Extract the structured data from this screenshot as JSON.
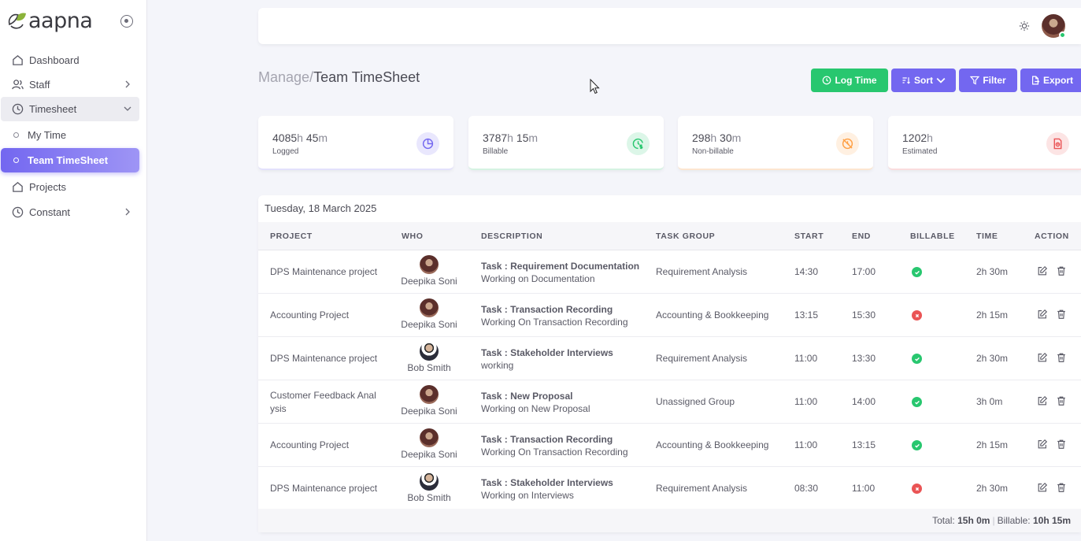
{
  "brand": {
    "name": "aapna"
  },
  "sidebar": {
    "items": [
      {
        "label": "Dashboard",
        "icon": "home-icon"
      },
      {
        "label": "Staff",
        "icon": "users-icon"
      },
      {
        "label": "Timesheet",
        "icon": "clock-icon"
      },
      {
        "label": "Projects",
        "icon": "home-icon"
      },
      {
        "label": "Constant",
        "icon": "clock-icon"
      }
    ],
    "sub_items": [
      {
        "label": "My Time"
      },
      {
        "label": "Team TimeSheet"
      }
    ]
  },
  "breadcrumb": {
    "parent": "Manage/",
    "current": "Team TimeSheet"
  },
  "actions": {
    "log_time": "Log Time",
    "sort": "Sort",
    "filter": "Filter",
    "export": "Export"
  },
  "stats": [
    {
      "hours": "4085",
      "hours_unit": "h",
      "minutes": "45",
      "minutes_unit": "m",
      "label": "Logged",
      "color": "#7367f0"
    },
    {
      "hours": "3787",
      "hours_unit": "h",
      "minutes": "15",
      "minutes_unit": "m",
      "label": "Billable",
      "color": "#28c76f"
    },
    {
      "hours": "298",
      "hours_unit": "h",
      "minutes": "30",
      "minutes_unit": "m",
      "label": "Non-billable",
      "color": "#ff9f43"
    },
    {
      "hours": "1202",
      "hours_unit": "h",
      "minutes": "",
      "minutes_unit": "",
      "label": "Estimated",
      "color": "#ea5455"
    }
  ],
  "table": {
    "date": "Tuesday, 18 March 2025",
    "columns": [
      "PROJECT",
      "WHO",
      "DESCRIPTION",
      "TASK GROUP",
      "START",
      "END",
      "BILLABLE",
      "TIME",
      "ACTION"
    ],
    "rows": [
      {
        "project": "DPS Maintenance project",
        "who": "Deepika Soni",
        "task": "Task : Requirement Documentation",
        "note": "Working on Documentation",
        "group": "Requirement Analysis",
        "start": "14:30",
        "end": "17:00",
        "billable": true,
        "time": "2h 30m"
      },
      {
        "project": "Accounting Project",
        "who": "Deepika Soni",
        "task": "Task : Transaction Recording",
        "note": "Working On Transaction Recording",
        "group": "Accounting & Bookkeeping",
        "start": "13:15",
        "end": "15:30",
        "billable": false,
        "time": "2h 15m"
      },
      {
        "project": "DPS Maintenance project",
        "who": "Bob Smith",
        "task": "Task : Stakeholder Interviews",
        "note": "working",
        "group": "Requirement Analysis",
        "start": "11:00",
        "end": "13:30",
        "billable": true,
        "time": "2h 30m"
      },
      {
        "project_line1": "Customer Feedback Anal",
        "project_line2": "ysis",
        "who": "Deepika Soni",
        "task": "Task : New Proposal",
        "note": "Working on New Proposal",
        "group": "Unassigned Group",
        "start": "11:00",
        "end": "14:00",
        "billable": true,
        "time": "3h 0m"
      },
      {
        "project": "Accounting Project",
        "who": "Deepika Soni",
        "task": "Task : Transaction Recording",
        "note": "Working On Transaction Recording",
        "group": "Accounting & Bookkeeping",
        "start": "11:00",
        "end": "13:15",
        "billable": true,
        "time": "2h 15m"
      },
      {
        "project": "DPS Maintenance project",
        "who": "Bob Smith",
        "task": "Task : Stakeholder Interviews",
        "note": "Working on Interviews",
        "group": "Requirement Analysis",
        "start": "08:30",
        "end": "11:00",
        "billable": false,
        "time": "2h 30m"
      }
    ],
    "footer": {
      "total_label": "Total:",
      "total_value": "15h 0m",
      "billable_label": "Billable:",
      "billable_value": "10h 15m"
    }
  }
}
